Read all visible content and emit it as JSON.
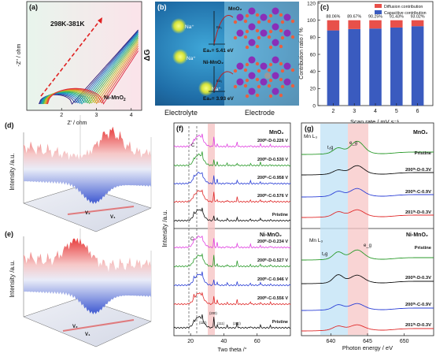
{
  "panel_labels": [
    "(a)",
    "(b)",
    "(c)",
    "(d)",
    "(e)",
    "(f)",
    "(g)"
  ],
  "panel_a": {
    "temperature_range": "298K-381K",
    "sample": "Ni-MnO",
    "sample_sub": "2",
    "xlabel": "Z' / ohm",
    "ylabel": "-Z'' / ohm",
    "xticks": [
      "2",
      "3",
      "4"
    ],
    "chart_data": {
      "type": "line",
      "x_ticks": [
        2,
        3,
        4
      ],
      "xlim": [
        1.0,
        4.3
      ],
      "series_count": 14
    }
  },
  "panel_b": {
    "y_axis_label": "ΔG",
    "ion_label": "Na⁺",
    "mno2_label": "MnO₂",
    "ni_mno2_label": "Ni-MnO₂",
    "ea_mno2": "Ea₁= 5.41 eV",
    "ea_ni": "Ea₂= 3.93 eV",
    "ea_small_1": "Ea₁",
    "ea_small_2": "Ea₂",
    "electrolyte_label": "Electrolyte",
    "electrode_label": "Electrode"
  },
  "panel_c": {
    "ylabel": "Contribution ratio / %",
    "xlabel": "Scan rate / mV s⁻¹",
    "legend": [
      "Diffusion contribution",
      "Capacitive contribution"
    ],
    "colors": {
      "diffusion": "#e8504a",
      "capacitive": "#3a5bbf"
    },
    "chart_data": {
      "type": "bar",
      "categories": [
        "2",
        "3",
        "4",
        "5",
        "6"
      ],
      "series": [
        {
          "name": "Capacitive contribution",
          "values": [
            88.06,
            89.67,
            90.25,
            91.43,
            93.02
          ]
        },
        {
          "name": "Diffusion contribution",
          "values": [
            11.94,
            10.33,
            9.75,
            8.57,
            6.98
          ]
        }
      ],
      "value_labels": [
        "88.06%",
        "89.67%",
        "90.25%",
        "91.43%",
        "93.02%"
      ],
      "yticks": [
        "0",
        "20",
        "40",
        "60",
        "80",
        "100",
        "120"
      ],
      "ylim": [
        0,
        120
      ]
    }
  },
  "panel_d": {
    "zlabel": "Intensity /a.u.",
    "v_labels": [
      "V₂",
      "V₁"
    ]
  },
  "panel_e": {
    "zlabel": "Intensity /a.u.",
    "v_labels": [
      "V₂",
      "V₁"
    ]
  },
  "panel_f": {
    "ylabel": "Intensity /a.u.",
    "xlabel": "Two theta /°",
    "xticks": [
      "20",
      "40",
      "60"
    ],
    "top_title": "MnO₂",
    "bottom_title": "Ni-MnO₂",
    "c_label": "C",
    "top_traces": [
      {
        "label": "200ᵗʰ-D-0.226 V",
        "color": "#e040e0"
      },
      {
        "label": "200ᵗʰ-D-0.530 V",
        "color": "#2a9a2a"
      },
      {
        "label": "200ᵗʰ-C-0.958 V",
        "color": "#2b3fd6"
      },
      {
        "label": "200ᵗʰ-C-0.576 V",
        "color": "#e02a2a"
      },
      {
        "label": "Pristine",
        "color": "#111111"
      }
    ],
    "bottom_traces": [
      {
        "label": "200ᵗʰ-D-0.234 V",
        "color": "#e040e0"
      },
      {
        "label": "200ᵗʰ-D-0.527 V",
        "color": "#2a9a2a"
      },
      {
        "label": "200ᵗʰ-C-0.946 V",
        "color": "#2b3fd6"
      },
      {
        "label": "200ᵗʰ-C-0.556 V",
        "color": "#e02a2a"
      },
      {
        "label": "Pristine",
        "color": "#111111"
      }
    ],
    "miller": [
      "(200)",
      "(110)",
      "(111)",
      "(282)"
    ]
  },
  "panel_g": {
    "xlabel": "Photon energy / eV",
    "xticks": [
      "640",
      "645",
      "650"
    ],
    "top_title": "MnO₂",
    "bottom_title": "Ni-MnO₂",
    "edge_label": "Mn L₃",
    "t2g": "t₂g",
    "eg": "e_g",
    "top_traces": [
      {
        "label": "Pristine",
        "color": "#2a9a2a"
      },
      {
        "label": "200ᵗʰ-D-0.3V",
        "color": "#111111"
      },
      {
        "label": "200ᵗʰ-C-0.9V",
        "color": "#2b3fd6"
      },
      {
        "label": "201ᵗʰ-D-0.3V",
        "color": "#e02a2a"
      }
    ],
    "bottom_traces": [
      {
        "label": "Pristine",
        "color": "#2a9a2a"
      },
      {
        "label": "200ᵗʰ-D-0.3V",
        "color": "#111111"
      },
      {
        "label": "200ᵗʰ-C-0.9V",
        "color": "#2b3fd6"
      },
      {
        "label": "201ᵗʰ-D-0.3V",
        "color": "#e02a2a"
      }
    ]
  }
}
